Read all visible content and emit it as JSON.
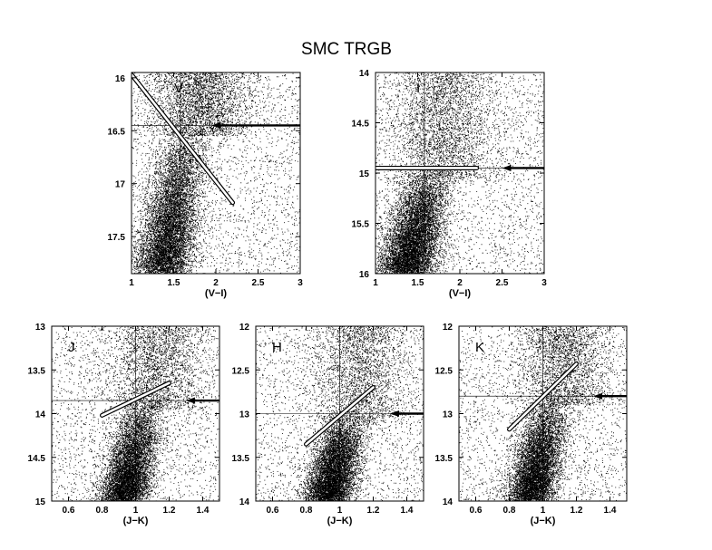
{
  "title": "SMC TRGB",
  "chart_data": [
    {
      "type": "scatter",
      "panel_label": "V",
      "xlabel": "(V−I)",
      "ylabel": "",
      "xlim": [
        1,
        3
      ],
      "ylim": [
        17.85,
        15.95
      ],
      "y_inverted": true,
      "xticks": [
        1,
        1.5,
        2,
        2.5,
        3
      ],
      "xtick_labels": [
        "1",
        "1.5",
        "2",
        "2.5",
        "3"
      ],
      "yticks": [
        16,
        16.5,
        17,
        17.5
      ],
      "ytick_labels": [
        "16",
        "16.5",
        "17",
        "17.5"
      ],
      "grid": false,
      "reference_lines": {
        "color": 1.58,
        "mag": 16.45
      },
      "trgb_mag": 16.45,
      "trgb_line": [
        [
          1.0,
          15.97
        ],
        [
          2.2,
          17.18
        ]
      ],
      "arrow": {
        "from": [
          3.0,
          16.45
        ],
        "to": [
          1.95,
          16.45
        ]
      },
      "density_model": {
        "blue_edge": 1.05,
        "color_at_faint": 1.35,
        "color_at_tip": 1.65,
        "width": 0.16,
        "faint_limit": 17.85
      },
      "points_shown": "dense scatter of stars"
    },
    {
      "type": "scatter",
      "panel_label": "I",
      "xlabel": "(V−I)",
      "ylabel": "",
      "xlim": [
        1,
        3
      ],
      "ylim": [
        16,
        14
      ],
      "y_inverted": true,
      "xticks": [
        1,
        1.5,
        2,
        2.5,
        3
      ],
      "xtick_labels": [
        "1",
        "1.5",
        "2",
        "2.5",
        "3"
      ],
      "yticks": [
        14,
        14.5,
        15,
        15.5,
        16
      ],
      "ytick_labels": [
        "14",
        "14.5",
        "15",
        "15.5",
        "16"
      ],
      "grid": false,
      "reference_lines": {
        "color": 1.58,
        "mag": 14.95
      },
      "trgb_mag": 14.95,
      "trgb_line": [
        [
          1.0,
          14.95
        ],
        [
          2.2,
          14.95
        ]
      ],
      "arrow": {
        "from": [
          3.0,
          14.95
        ],
        "to": [
          2.5,
          14.95
        ]
      },
      "density_model": {
        "blue_edge": 1.05,
        "color_at_faint": 1.35,
        "color_at_tip": 1.65,
        "width": 0.16,
        "faint_limit": 16
      },
      "points_shown": "dense scatter of stars"
    },
    {
      "type": "scatter",
      "panel_label": "J",
      "xlabel": "(J−K)",
      "ylabel": "",
      "xlim": [
        0.5,
        1.5
      ],
      "ylim": [
        15,
        13
      ],
      "y_inverted": true,
      "xticks": [
        0.6,
        0.8,
        1,
        1.2,
        1.4
      ],
      "xtick_labels": [
        "0.6",
        "0.8",
        "1",
        "1.2",
        "1.4"
      ],
      "yticks": [
        13,
        13.5,
        14,
        14.5,
        15
      ],
      "ytick_labels": [
        "13",
        "13.5",
        "14",
        "14.5",
        "15"
      ],
      "grid": false,
      "reference_lines": {
        "color": 1.0,
        "mag": 13.85
      },
      "trgb_mag": 13.85,
      "trgb_line": [
        [
          0.8,
          14.02
        ],
        [
          1.2,
          13.65
        ]
      ],
      "arrow": {
        "from": [
          1.5,
          13.85
        ],
        "to": [
          1.3,
          13.85
        ]
      },
      "density_model": {
        "blue_edge": 0.78,
        "color_at_faint": 0.92,
        "color_at_tip": 1.05,
        "width": 0.07,
        "faint_limit": 15
      },
      "points_shown": "dense scatter of stars"
    },
    {
      "type": "scatter",
      "panel_label": "H",
      "xlabel": "(J−K)",
      "ylabel": "",
      "xlim": [
        0.5,
        1.5
      ],
      "ylim": [
        14,
        12
      ],
      "y_inverted": true,
      "xticks": [
        0.6,
        0.8,
        1,
        1.2,
        1.4
      ],
      "xtick_labels": [
        "0.6",
        "0.8",
        "1",
        "1.2",
        "1.4"
      ],
      "yticks": [
        12,
        12.5,
        13,
        13.5,
        14
      ],
      "ytick_labels": [
        "12",
        "12.5",
        "13",
        "13.5",
        "14"
      ],
      "grid": false,
      "reference_lines": {
        "color": 1.0,
        "mag": 13.0
      },
      "trgb_mag": 13.0,
      "trgb_line": [
        [
          0.8,
          13.35
        ],
        [
          1.2,
          12.7
        ]
      ],
      "arrow": {
        "from": [
          1.5,
          13.0
        ],
        "to": [
          1.3,
          13.0
        ]
      },
      "density_model": {
        "blue_edge": 0.78,
        "color_at_faint": 0.92,
        "color_at_tip": 1.05,
        "width": 0.07,
        "faint_limit": 14
      },
      "points_shown": "dense scatter of stars"
    },
    {
      "type": "scatter",
      "panel_label": "K",
      "xlabel": "(J−K)",
      "ylabel": "",
      "xlim": [
        0.5,
        1.5
      ],
      "ylim": [
        14,
        12
      ],
      "y_inverted": true,
      "xticks": [
        0.6,
        0.8,
        1,
        1.2,
        1.4
      ],
      "xtick_labels": [
        "0.6",
        "0.8",
        "1",
        "1.2",
        "1.4"
      ],
      "yticks": [
        12,
        12.5,
        13,
        13.5,
        14
      ],
      "ytick_labels": [
        "12",
        "12.5",
        "13",
        "13.5",
        "14"
      ],
      "grid": false,
      "reference_lines": {
        "color": 1.0,
        "mag": 12.8
      },
      "trgb_mag": 12.8,
      "trgb_line": [
        [
          0.8,
          13.18
        ],
        [
          1.2,
          12.43
        ]
      ],
      "arrow": {
        "from": [
          1.5,
          12.8
        ],
        "to": [
          1.3,
          12.8
        ]
      },
      "density_model": {
        "blue_edge": 0.78,
        "color_at_faint": 0.92,
        "color_at_tip": 1.05,
        "width": 0.07,
        "faint_limit": 14
      },
      "points_shown": "dense scatter of stars"
    }
  ],
  "colors": {
    "points": "#000000",
    "axes": "#000000",
    "background": "#ffffff",
    "trgb_line_fill": "#ffffff"
  }
}
